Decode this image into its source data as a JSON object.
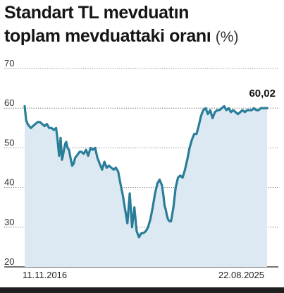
{
  "header": {
    "title_line1": "Standart TL mevduatın",
    "title_line2": "toplam mevduattaki oranı",
    "unit": "(%)"
  },
  "chart_data": {
    "type": "area",
    "title": "Standart TL mevduatın toplam mevduattaki oranı",
    "unit": "(%)",
    "xlabel": "",
    "ylabel": "",
    "ylim": [
      20,
      70
    ],
    "yticks": [
      20,
      30,
      40,
      50,
      60,
      70
    ],
    "x_tick_labels": [
      "11.11.2016",
      "22.08.2025"
    ],
    "x_range": [
      "2016-11-11",
      "2025-08-22"
    ],
    "grid": "horizontal",
    "line_color": "#2a7d98",
    "fill_color": "#dce9f2",
    "end_label": "60,02",
    "series": [
      {
        "x": [
          "2016-11-11",
          "2016-12-01",
          "2016-12-20",
          "2017-01-10",
          "2017-02-01",
          "2017-03-01",
          "2017-04-01",
          "2017-05-01",
          "2017-06-01",
          "2017-07-01",
          "2017-08-01",
          "2017-09-01",
          "2017-10-01",
          "2017-11-01",
          "2017-12-01",
          "2018-01-01",
          "2018-01-20",
          "2018-02-10",
          "2018-03-01",
          "2018-03-20",
          "2018-04-10",
          "2018-05-01",
          "2018-05-15",
          "2018-06-01",
          "2018-06-20",
          "2018-07-10",
          "2018-08-01",
          "2018-08-20",
          "2018-09-10",
          "2018-10-01",
          "2018-10-20",
          "2018-11-10",
          "2018-12-01",
          "2019-01-01",
          "2019-02-01",
          "2019-03-01",
          "2019-04-01",
          "2019-05-01",
          "2019-06-01",
          "2019-07-01",
          "2019-08-01",
          "2019-09-01",
          "2019-10-01",
          "2019-11-01",
          "2019-12-01",
          "2020-01-01",
          "2020-02-01",
          "2020-03-01",
          "2020-04-01",
          "2020-05-01",
          "2020-06-01",
          "2020-07-01",
          "2020-08-01",
          "2020-09-01",
          "2020-10-01",
          "2020-11-01",
          "2020-12-01",
          "2021-01-01",
          "2021-02-01",
          "2021-03-01",
          "2021-04-01",
          "2021-05-01",
          "2021-06-01",
          "2021-07-01",
          "2021-08-01",
          "2021-09-01",
          "2021-10-01",
          "2021-11-01",
          "2021-11-20",
          "2021-12-05",
          "2021-12-20",
          "2022-01-05",
          "2022-01-20",
          "2022-02-10",
          "2022-03-01",
          "2022-04-01",
          "2022-05-01",
          "2022-06-01",
          "2022-07-01",
          "2022-08-01",
          "2022-09-01",
          "2022-10-01",
          "2022-11-01",
          "2022-12-01",
          "2023-01-01",
          "2023-02-01",
          "2023-03-01",
          "2023-04-01",
          "2023-05-01",
          "2023-06-01",
          "2023-07-01",
          "2023-08-01",
          "2023-09-01",
          "2023-10-01",
          "2023-11-01",
          "2023-12-01",
          "2024-01-01",
          "2024-02-01",
          "2024-03-01",
          "2024-04-01",
          "2024-05-01",
          "2024-06-01",
          "2024-07-01",
          "2024-08-01",
          "2024-09-01",
          "2024-10-01",
          "2024-11-01",
          "2024-12-01",
          "2025-01-01",
          "2025-02-01",
          "2025-03-01",
          "2025-04-01",
          "2025-05-01",
          "2025-06-01",
          "2025-07-01",
          "2025-08-22"
        ],
        "y": [
          60.5,
          57.0,
          56.0,
          55.5,
          55.0,
          55.5,
          56.0,
          56.5,
          56.5,
          56.0,
          55.5,
          56.0,
          55.0,
          55.0,
          54.5,
          55.0,
          52.0,
          48.0,
          52.5,
          47.0,
          49.0,
          51.0,
          51.5,
          50.0,
          49.5,
          47.5,
          45.5,
          46.0,
          47.5,
          48.0,
          48.5,
          49.0,
          49.0,
          48.5,
          49.5,
          48.0,
          50.0,
          49.5,
          50.0,
          47.5,
          46.0,
          44.5,
          46.5,
          45.0,
          45.5,
          45.0,
          44.5,
          45.0,
          44.0,
          41.0,
          38.0,
          34.5,
          31.0,
          38.5,
          30.0,
          35.0,
          29.0,
          27.5,
          28.5,
          28.5,
          29.0,
          30.0,
          32.0,
          35.0,
          38.5,
          41.0,
          42.0,
          40.5,
          38.0,
          35.5,
          34.5,
          33.0,
          32.0,
          31.5,
          31.5,
          35.0,
          40.0,
          42.5,
          43.0,
          42.5,
          44.5,
          47.0,
          50.0,
          52.0,
          53.5,
          53.5,
          55.5,
          58.0,
          59.5,
          60.0,
          58.5,
          59.5,
          57.5,
          59.0,
          59.5,
          59.5,
          60.0,
          60.5,
          59.5,
          60.0,
          59.0,
          59.5,
          59.0,
          58.5,
          59.0,
          59.5,
          59.0,
          59.5,
          59.5,
          59.5,
          60.0,
          59.5,
          59.5,
          60.0,
          60.0,
          60.02
        ]
      }
    ]
  }
}
